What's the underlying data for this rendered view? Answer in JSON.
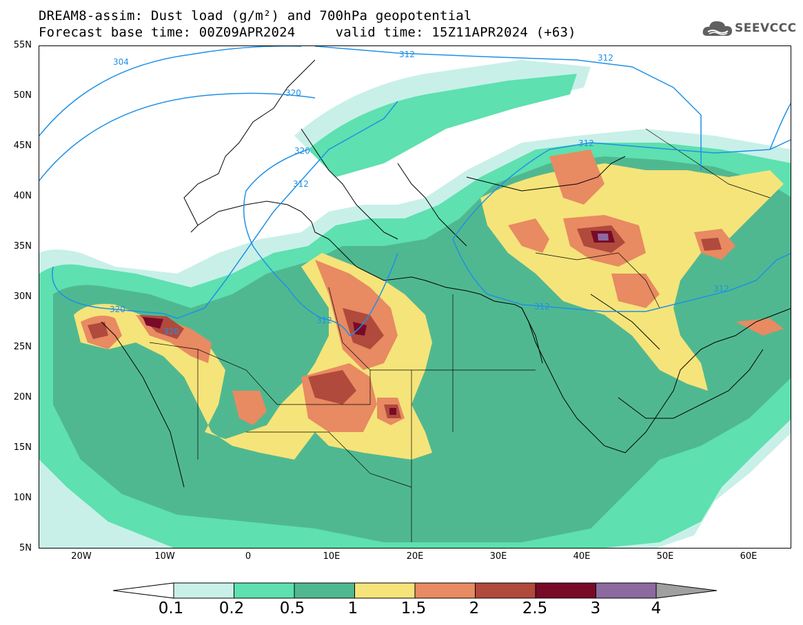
{
  "title": {
    "line1": "DREAM8-assim: Dust load (g/m²) and 700hPa geopotential",
    "line2": "Forecast base time: 00Z09APR2024     valid time: 15Z11APR2024 (+63)"
  },
  "logo": {
    "text": "SEEVCCC",
    "icon": "cloud-icon"
  },
  "axes": {
    "lat_labels": [
      "55N",
      "50N",
      "45N",
      "40N",
      "35N",
      "30N",
      "25N",
      "20N",
      "15N",
      "10N",
      "5N"
    ],
    "lon_labels": [
      "20W",
      "10W",
      "0",
      "10E",
      "20E",
      "30E",
      "40E",
      "50E",
      "60E"
    ],
    "lat_range": [
      5,
      55
    ],
    "lon_range": [
      -25,
      65
    ]
  },
  "contour_labels": [
    "304",
    "312",
    "320",
    "320",
    "312",
    "320",
    "320",
    "312",
    "312",
    "312",
    "312",
    "312"
  ],
  "colorbar": {
    "levels": [
      "0.1",
      "0.2",
      "0.5",
      "1",
      "1.5",
      "2",
      "2.5",
      "3",
      "4"
    ],
    "colors": [
      "#c8f0e8",
      "#5ee0b0",
      "#50b890",
      "#f5e47a",
      "#e88a62",
      "#b04a3c",
      "#780a28",
      "#8c6aa0",
      "#a0a0a0"
    ],
    "extend_low_color": "#ffffff",
    "extend_high_color": "#a0a0a0"
  },
  "palette": {
    "land_border": "#000000",
    "contour_line": "#1e90e6",
    "contour_label": "#1e90e6"
  }
}
